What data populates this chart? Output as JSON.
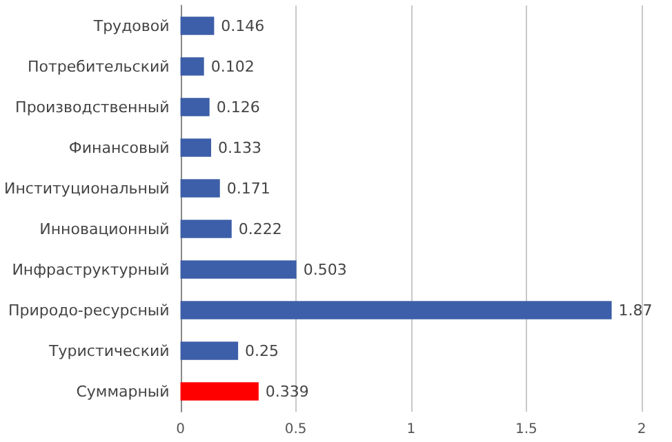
{
  "chart_data": {
    "type": "bar",
    "orientation": "horizontal",
    "categories": [
      "Трудовой",
      "Потребительский",
      "Производственный",
      "Финансовый",
      "Институциональный",
      "Инновационный",
      "Инфраструктурный",
      "Природо-ресурсный",
      "Туристический",
      "Суммарный"
    ],
    "values": [
      0.146,
      0.102,
      0.126,
      0.133,
      0.171,
      0.222,
      0.503,
      1.87,
      0.25,
      0.339
    ],
    "colors": [
      "#3d5ea8",
      "#3d5ea8",
      "#3d5ea8",
      "#3d5ea8",
      "#3d5ea8",
      "#3d5ea8",
      "#3d5ea8",
      "#3d5ea8",
      "#3d5ea8",
      "#ff0000"
    ],
    "xlim": [
      0,
      2
    ],
    "xticks": [
      0,
      0.5,
      1,
      1.5,
      2
    ],
    "grid": "x",
    "data_labels": true
  }
}
